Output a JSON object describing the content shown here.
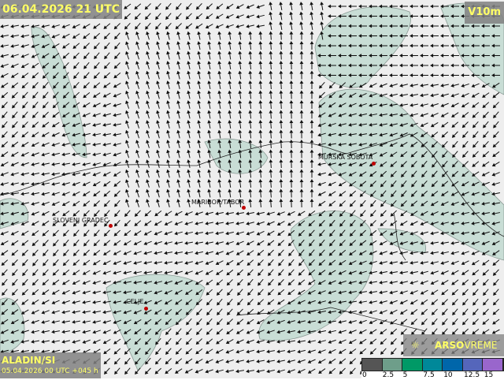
{
  "header": {
    "valid_time": "06.04.2026 21 UTC",
    "variable": "V10m"
  },
  "model": {
    "name": "ALADIN/SI",
    "run": "05.04.2026 00 UTC +045 h"
  },
  "brand": {
    "name_bold": "ARSO",
    "name_light": "VREME",
    "icon": "arso-logo-icon"
  },
  "legend": {
    "ticks": [
      "0",
      "2.5",
      "5",
      "7.5",
      "10",
      "12.5",
      "15"
    ],
    "colors": [
      "#555555",
      "#6e9e8a",
      "#009966",
      "#008899",
      "#0066aa",
      "#5566bb",
      "#9966cc"
    ]
  },
  "colors": {
    "background": "#eeeeee",
    "shade": "#c8ddd5",
    "dot": "#c00000"
  },
  "cities": [
    {
      "name": "SLOVENJ GRADEC"
    },
    {
      "name": "MARIBOR/TABOR"
    },
    {
      "name": "MURSKA SOBOTA"
    },
    {
      "name": "CELJE"
    }
  ]
}
